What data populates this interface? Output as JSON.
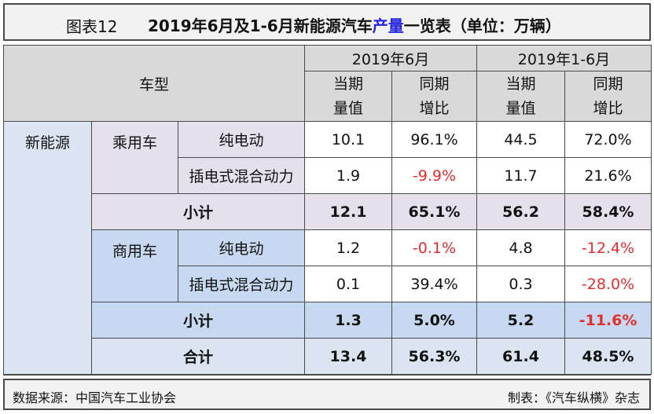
{
  "title": {
    "fig_label": "图表12",
    "text_before": "2019年6月及1-6月新能源汽车",
    "text_highlight": "产量",
    "text_after": "一览表（单位：万辆）"
  },
  "header": {
    "type_label": "车型",
    "period_june": "2019年6月",
    "period_ytd": "2019年1-6月",
    "col_current_l1": "当期",
    "col_current_l2": "量值",
    "col_growth_l1": "同期",
    "col_growth_l2": "增比"
  },
  "category": "新能源",
  "passenger": {
    "label": "乘用车",
    "rows": [
      {
        "name": "纯电动",
        "jun": "10.1",
        "jun_g": "96.1%",
        "ytd": "44.5",
        "ytd_g": "72.0%"
      },
      {
        "name": "插电式混合动力",
        "jun": "1.9",
        "jun_g": "-9.9%",
        "ytd": "11.7",
        "ytd_g": "21.6%"
      }
    ],
    "subtotal": {
      "name": "小计",
      "jun": "12.1",
      "jun_g": "65.1%",
      "ytd": "56.2",
      "ytd_g": "58.4%"
    }
  },
  "commercial": {
    "label": "商用车",
    "rows": [
      {
        "name": "纯电动",
        "jun": "1.2",
        "jun_g": "-0.1%",
        "ytd": "4.8",
        "ytd_g": "-12.4%"
      },
      {
        "name": "插电式混合动力",
        "jun": "0.1",
        "jun_g": "39.4%",
        "ytd": "0.3",
        "ytd_g": "-28.0%"
      }
    ],
    "subtotal": {
      "name": "小计",
      "jun": "1.3",
      "jun_g": "5.0%",
      "ytd": "5.2",
      "ytd_g": "-11.6%"
    }
  },
  "total": {
    "name": "合计",
    "jun": "13.4",
    "jun_g": "56.3%",
    "ytd": "61.4",
    "ytd_g": "48.5%"
  },
  "footer": {
    "source": "数据来源：中国汽车工业协会",
    "maker": "制表：《汽车纵横》杂志"
  },
  "colors": {
    "negative": "#e03030",
    "highlight": "#2323e0",
    "header_bg": "#d9d9d9",
    "passenger_bg": "#e6e0ec",
    "commercial_bg": "#c6d9f0"
  }
}
